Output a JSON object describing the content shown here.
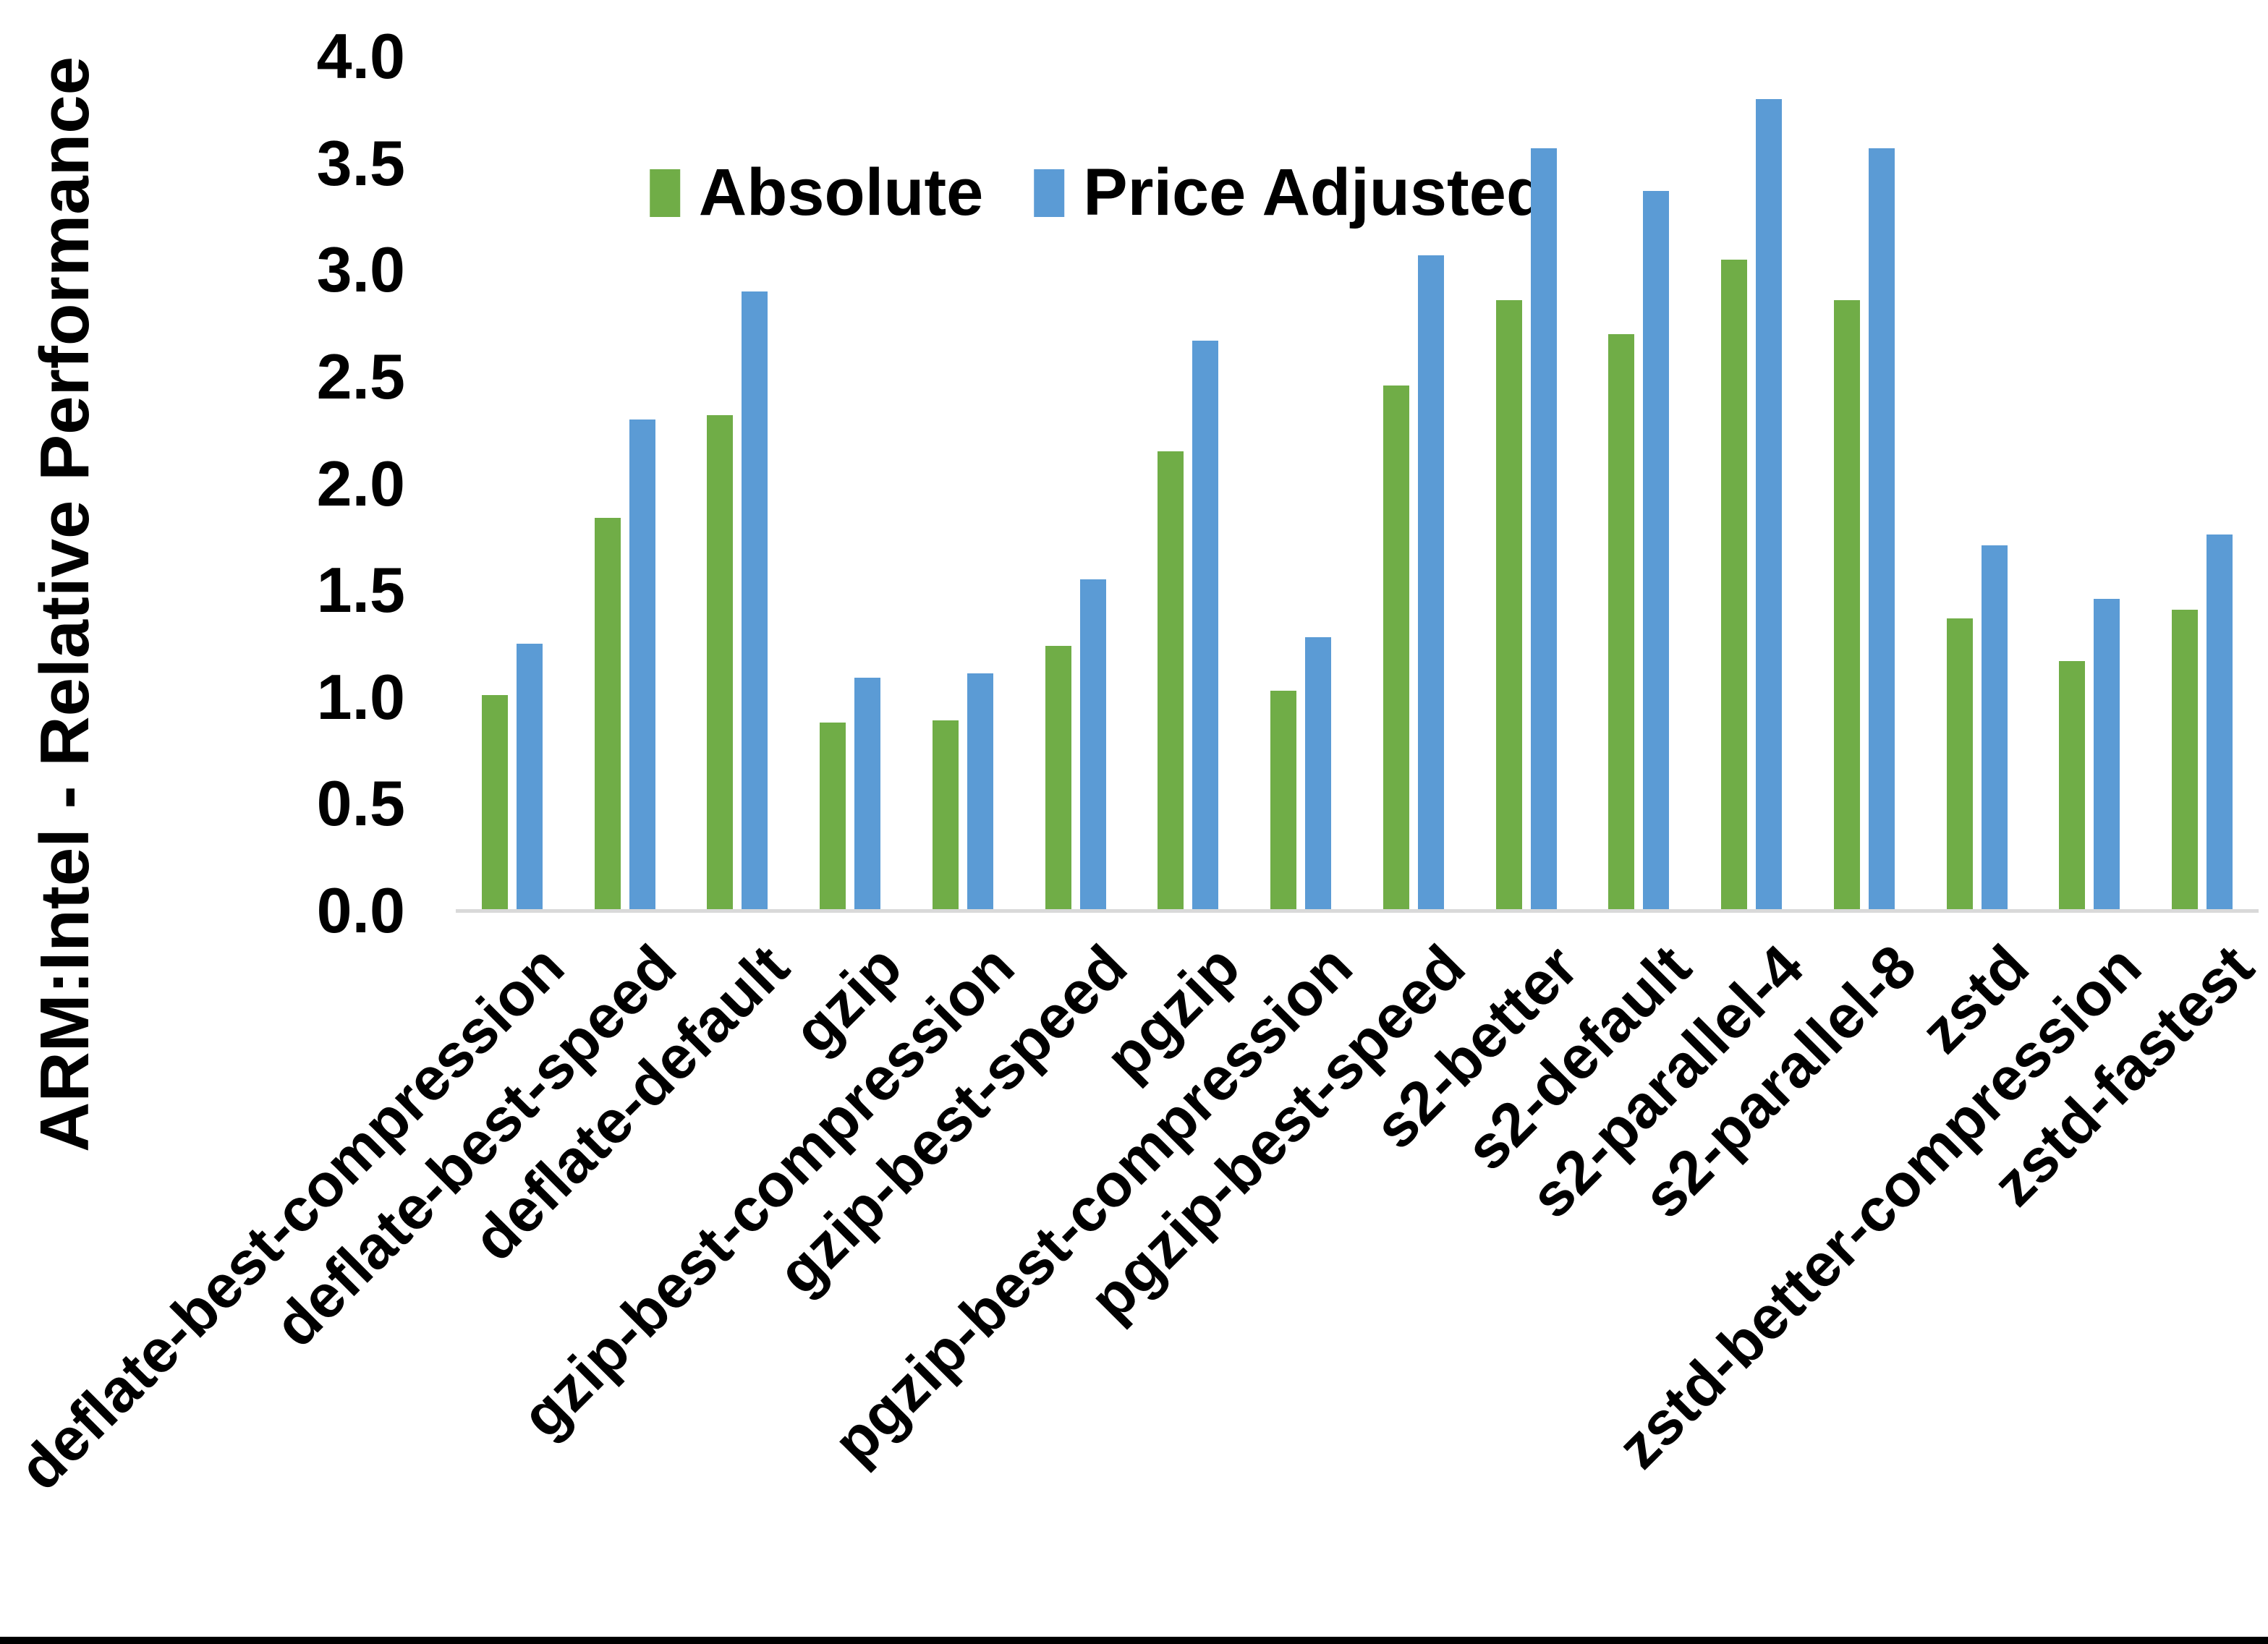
{
  "chart_data": {
    "type": "bar",
    "title": "",
    "xlabel": "",
    "ylabel": "ARM:Intel - Relative Performance",
    "ylim": [
      0.0,
      4.0
    ],
    "ytick_step": 0.5,
    "yticks": [
      "4.0",
      "3.5",
      "3.0",
      "2.5",
      "2.0",
      "1.5",
      "1.0",
      "0.5",
      "0.0"
    ],
    "grid": false,
    "legend_position": "top-center",
    "categories": [
      "deflate-best-compression",
      "deflate-best-speed",
      "deflate-default",
      "gzip",
      "gzip-best-compression",
      "gzip-best-speed",
      "pgzip",
      "pgzip-best-compression",
      "pgzip-best-speed",
      "s2-better",
      "s2-default",
      "s2-parallel-4",
      "s2-parallel-8",
      "zstd",
      "zstd-better-compression",
      "zstd-fastest"
    ],
    "series": [
      {
        "name": "Absolute",
        "color": "#70AD47",
        "values": [
          1.01,
          1.84,
          2.32,
          0.88,
          0.89,
          1.24,
          2.15,
          1.03,
          2.46,
          2.86,
          2.7,
          3.05,
          2.86,
          1.37,
          1.17,
          1.41
        ]
      },
      {
        "name": "Price Adjusted",
        "color": "#5B9BD5",
        "values": [
          1.25,
          2.3,
          2.9,
          1.09,
          1.11,
          1.55,
          2.67,
          1.28,
          3.07,
          3.57,
          3.37,
          3.8,
          3.57,
          1.71,
          1.46,
          1.76
        ]
      }
    ]
  },
  "colors": {
    "background": "#FFFFFF",
    "axis_line": "#D9D9D9",
    "text": "#000000",
    "bottom_border": "#000000",
    "series_absolute": "#70AD47",
    "series_price_adjusted": "#5B9BD5"
  }
}
